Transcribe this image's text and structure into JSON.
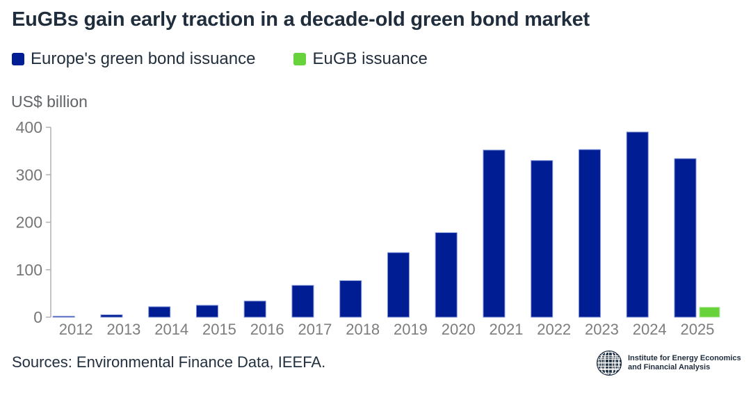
{
  "title": "EuGBs gain early traction in a decade-old green bond market",
  "legend": {
    "items": [
      {
        "label": "Europe's green bond issuance",
        "color": "#001d93"
      },
      {
        "label": "EuGB issuance",
        "color": "#67d23a"
      }
    ]
  },
  "source": "Sources: Environmental Finance Data, IEEFA.",
  "logo": {
    "line1": "Institute for Energy Economics",
    "line2": "and Financial Analysis"
  },
  "chart_data": {
    "type": "bar",
    "title": "EuGBs gain early traction in a decade-old green bond market",
    "ylabel": "US$ billion",
    "xlabel": "",
    "ylim": [
      0,
      400
    ],
    "yticks": [
      0,
      100,
      200,
      300,
      400
    ],
    "grid": false,
    "legend_position": "top-left",
    "categories": [
      "2012",
      "2013",
      "2014",
      "2015",
      "2016",
      "2017",
      "2018",
      "2019",
      "2020",
      "2021",
      "2022",
      "2023",
      "2024",
      "2025"
    ],
    "series": [
      {
        "name": "Europe's green bond issuance",
        "color": "#001d93",
        "values": [
          2,
          5,
          22,
          25,
          34,
          67,
          77,
          136,
          178,
          352,
          330,
          353,
          390,
          334
        ]
      },
      {
        "name": "EuGB issuance",
        "color": "#67d23a",
        "values": [
          0,
          0,
          0,
          0,
          0,
          0,
          0,
          0,
          0,
          0,
          0,
          0,
          0,
          21
        ]
      }
    ]
  },
  "colors": {
    "title_text": "#1f2d3c",
    "axis_line": "#b0b0b0",
    "tick_text": "#767676",
    "x_label_text": "#7d7d7d",
    "blue_bar": "#001d93",
    "blue_bar_stroke": "#8193d8",
    "green_bar": "#67d23a",
    "green_bar_stroke": "#b9e9a4",
    "background": "#ffffff"
  }
}
